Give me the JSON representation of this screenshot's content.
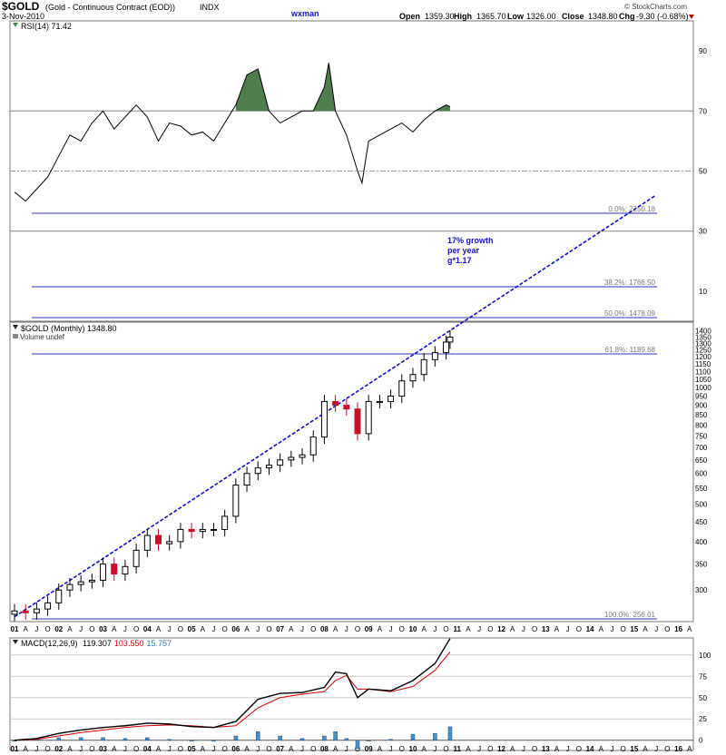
{
  "header": {
    "symbol": "$GOLD",
    "desc": "(Gold - Continuous Contract (EOD))",
    "exchange": "INDX",
    "author": "wxman",
    "date": "3-Nov-2010",
    "copyright": "© StockCharts.com",
    "open_label": "Open",
    "open": "1359.30",
    "high_label": "High",
    "high": "1365.70",
    "low_label": "Low",
    "low": "1326.00",
    "close_label": "Close",
    "close": "1348.80",
    "chg_label": "Chg",
    "chg": "-9.30 (-0.68%)",
    "colors": {
      "author": "#1010c8",
      "chg": "#c00000"
    }
  },
  "chart_data": [
    {
      "type": "line",
      "panel": "rsi",
      "legend": "RSI(14) 71.42",
      "yticks": [
        90,
        70,
        50,
        30,
        10
      ],
      "ylim": [
        0,
        100
      ],
      "overbought": 70,
      "midline": 50,
      "oversold": 30,
      "x": [
        2001.0,
        2001.25,
        2001.5,
        2001.75,
        2002.0,
        2002.25,
        2002.5,
        2002.75,
        2003.0,
        2003.25,
        2003.5,
        2003.75,
        2004.0,
        2004.25,
        2004.5,
        2004.75,
        2005.0,
        2005.25,
        2005.5,
        2005.75,
        2006.0,
        2006.25,
        2006.5,
        2006.75,
        2007.0,
        2007.25,
        2007.5,
        2007.75,
        2008.0,
        2008.1,
        2008.25,
        2008.5,
        2008.75,
        2008.85,
        2009.0,
        2009.25,
        2009.5,
        2009.75,
        2010.0,
        2010.25,
        2010.5,
        2010.75,
        2010.84
      ],
      "values": [
        43,
        40,
        44,
        48,
        55,
        62,
        60,
        66,
        70,
        64,
        68,
        72,
        68,
        60,
        66,
        65,
        62,
        63,
        60,
        66,
        72,
        82,
        84,
        70,
        66,
        68,
        70,
        70,
        78,
        86,
        70,
        62,
        50,
        46,
        60,
        62,
        64,
        66,
        63,
        67,
        70,
        72,
        71.42
      ],
      "color": "#000000",
      "fill_above_70": "#4e7e4e"
    },
    {
      "type": "candlestick",
      "panel": "price",
      "legend": "$GOLD (Monthly) 1348.80",
      "volume_label": "Volume undef",
      "scale": "log",
      "ylim": [
        250,
        1420
      ],
      "yticks": [
        1400,
        1350,
        1300,
        1250,
        1200,
        1150,
        1100,
        1050,
        1000,
        950,
        900,
        850,
        800,
        750,
        700,
        650,
        600,
        550,
        500,
        450,
        400,
        350,
        300
      ],
      "xlabels": [
        "01",
        "A",
        "J",
        "O",
        "02",
        "A",
        "J",
        "O",
        "03",
        "A",
        "J",
        "O",
        "04",
        "A",
        "J",
        "O",
        "05",
        "A",
        "J",
        "O",
        "06",
        "A",
        "J",
        "O",
        "07",
        "A",
        "J",
        "O",
        "08",
        "A",
        "J",
        "O",
        "09",
        "A",
        "J",
        "O",
        "10",
        "A",
        "J",
        "O",
        "11",
        "A",
        "J",
        "O",
        "12",
        "A",
        "J",
        "O",
        "13",
        "A",
        "J",
        "O",
        "14",
        "A",
        "J",
        "O",
        "15",
        "A",
        "J",
        "O",
        "16",
        "A"
      ],
      "x": [
        2001.0,
        2001.25,
        2001.5,
        2001.75,
        2002.0,
        2002.25,
        2002.5,
        2002.75,
        2003.0,
        2003.25,
        2003.5,
        2003.75,
        2004.0,
        2004.25,
        2004.5,
        2004.75,
        2005.0,
        2005.25,
        2005.5,
        2005.75,
        2006.0,
        2006.25,
        2006.5,
        2006.75,
        2007.0,
        2007.25,
        2007.5,
        2007.75,
        2008.0,
        2008.25,
        2008.5,
        2008.75,
        2009.0,
        2009.25,
        2009.5,
        2009.75,
        2010.0,
        2010.25,
        2010.5,
        2010.75,
        2010.84
      ],
      "close": [
        265,
        262,
        268,
        278,
        300,
        310,
        315,
        318,
        350,
        330,
        345,
        380,
        415,
        395,
        400,
        430,
        425,
        430,
        430,
        465,
        560,
        600,
        620,
        630,
        650,
        660,
        670,
        745,
        920,
        900,
        880,
        760,
        920,
        920,
        950,
        1040,
        1080,
        1180,
        1230,
        1310,
        1348.8
      ],
      "color_up": "#000000",
      "color_down": "#c8102e",
      "fib_levels": [
        {
          "label": "0.0%: 2250.18",
          "value": 2250.18
        },
        {
          "label": "38.2%: 1766.50",
          "value": 1766.5
        },
        {
          "label": "50.0%: 1478.09",
          "value": 1478.09
        },
        {
          "label": "61.8%: 1189.68",
          "value": 1189.68
        },
        {
          "label": "100.0%: 256.01",
          "value": 256.01
        }
      ],
      "trendline": {
        "start": [
          2001.0,
          256
        ],
        "end": [
          2015.5,
          2250
        ],
        "rate_note": "17% growth\nper year\ng*1.17"
      },
      "growth_label_lines": [
        "17% growth",
        "per year",
        "g*1.17"
      ]
    },
    {
      "type": "line",
      "panel": "macd",
      "legend_prefix": "MACD(12,26,9)",
      "macd_value": "119.307",
      "signal_value": "103.550",
      "hist_value": "15.757",
      "colors": {
        "macd": "#000000",
        "signal": "#d00000",
        "hist": "#4a90c8"
      },
      "yticks": [
        100,
        75,
        50,
        25,
        0
      ],
      "ylim": [
        -12,
        120
      ],
      "x": [
        2001.0,
        2001.5,
        2002.0,
        2002.5,
        2003.0,
        2003.5,
        2004.0,
        2004.5,
        2005.0,
        2005.5,
        2006.0,
        2006.5,
        2007.0,
        2007.5,
        2008.0,
        2008.25,
        2008.5,
        2008.75,
        2009.0,
        2009.5,
        2010.0,
        2010.5,
        2010.84
      ],
      "macd": [
        0,
        2,
        8,
        12,
        15,
        17,
        20,
        19,
        16,
        15,
        22,
        48,
        55,
        56,
        62,
        80,
        78,
        50,
        60,
        58,
        70,
        90,
        119.307
      ],
      "signal": [
        0,
        1,
        5,
        9,
        12,
        15,
        17,
        18,
        17,
        15,
        17,
        38,
        50,
        54,
        57,
        70,
        76,
        60,
        60,
        57,
        63,
        82,
        103.55
      ],
      "hist": [
        0,
        1,
        3,
        3,
        3,
        2,
        3,
        1,
        -1,
        0,
        5,
        10,
        5,
        2,
        5,
        10,
        2,
        -10,
        0,
        1,
        7,
        8,
        15.757
      ]
    }
  ]
}
